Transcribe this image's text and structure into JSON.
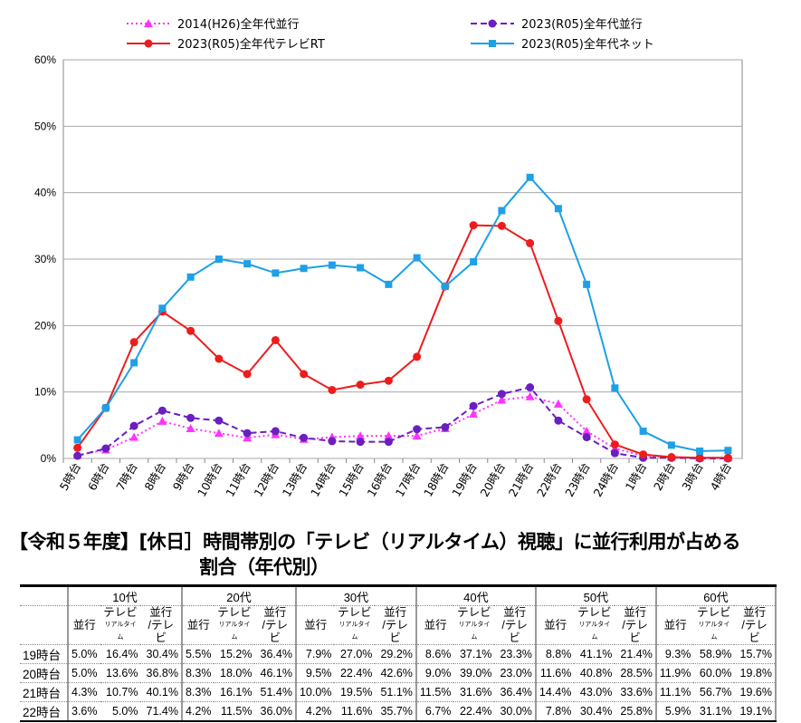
{
  "chart_data": {
    "type": "line",
    "title": "",
    "xlabel": "",
    "ylabel": "",
    "ylim": [
      0,
      60
    ],
    "yticks": [
      "0%",
      "10%",
      "20%",
      "30%",
      "40%",
      "50%",
      "60%"
    ],
    "categories": [
      "5時台",
      "6時台",
      "7時台",
      "8時台",
      "9時台",
      "10時台",
      "11時台",
      "12時台",
      "13時台",
      "14時台",
      "15時台",
      "16時台",
      "17時台",
      "18時台",
      "19時台",
      "20時台",
      "21時台",
      "22時台",
      "23時台",
      "24時台",
      "1時台",
      "2時台",
      "3時台",
      "4時台"
    ],
    "legend_position": "top",
    "series": [
      {
        "name": "2014(H26)全年代並行",
        "color": "#ff33ff",
        "style": "dotted",
        "marker": "triangle",
        "values": [
          0.5,
          1.3,
          3.2,
          5.6,
          4.5,
          3.8,
          3.1,
          3.6,
          2.9,
          3.2,
          3.4,
          3.4,
          3.4,
          4.5,
          6.7,
          8.8,
          9.3,
          8.2,
          4.1,
          1.5,
          0.4,
          0.2,
          0.1,
          0.1
        ]
      },
      {
        "name": "2023(R05)全年代並行",
        "color": "#6a1fc0",
        "style": "dashed",
        "marker": "circle",
        "values": [
          0.4,
          1.5,
          4.9,
          7.2,
          6.1,
          5.7,
          3.8,
          4.1,
          3.1,
          2.6,
          2.5,
          2.5,
          4.4,
          4.7,
          7.9,
          9.7,
          10.7,
          5.7,
          3.2,
          0.8,
          0.1,
          0.1,
          0.0,
          0.0
        ]
      },
      {
        "name": "2023(R05)全年代テレビRT",
        "color": "#ee1c1c",
        "style": "solid",
        "marker": "circle",
        "values": [
          1.6,
          7.6,
          17.5,
          22.1,
          19.2,
          15.0,
          12.7,
          17.8,
          12.7,
          10.3,
          11.1,
          11.7,
          15.3,
          25.9,
          35.1,
          35.0,
          32.4,
          20.7,
          8.9,
          2.1,
          0.6,
          0.2,
          0.1,
          0.1
        ]
      },
      {
        "name": "2023(R05)全年代ネット",
        "color": "#1ea0e6",
        "style": "solid",
        "marker": "square",
        "values": [
          2.8,
          7.6,
          14.4,
          22.6,
          27.3,
          30.0,
          29.3,
          27.9,
          28.6,
          29.1,
          28.7,
          26.2,
          30.2,
          25.9,
          29.6,
          37.3,
          42.3,
          37.6,
          26.2,
          10.6,
          4.1,
          2.0,
          1.1,
          1.2
        ]
      }
    ]
  },
  "table": {
    "title1": "【令和５年度】[休日］時間帯別の「テレビ（リアルタイム）視聴」に並行利用が占める",
    "title2": "割合（年代別）",
    "groups": [
      "10代",
      "20代",
      "30代",
      "40代",
      "50代",
      "60代"
    ],
    "sub": {
      "a": "並行",
      "b": "テレビ",
      "b2": "リアルタイム",
      "c1": "並行",
      "c2": "/テレビ"
    },
    "rows": [
      {
        "label": "19時台",
        "vals": [
          "5.0%",
          "16.4%",
          "30.4%",
          "5.5%",
          "15.2%",
          "36.4%",
          "7.9%",
          "27.0%",
          "29.2%",
          "8.6%",
          "37.1%",
          "23.3%",
          "8.8%",
          "41.1%",
          "21.4%",
          "9.3%",
          "58.9%",
          "15.7%"
        ]
      },
      {
        "label": "20時台",
        "vals": [
          "5.0%",
          "13.6%",
          "36.8%",
          "8.3%",
          "18.0%",
          "46.1%",
          "9.5%",
          "22.4%",
          "42.6%",
          "9.0%",
          "39.0%",
          "23.0%",
          "11.6%",
          "40.8%",
          "28.5%",
          "11.9%",
          "60.0%",
          "19.8%"
        ]
      },
      {
        "label": "21時台",
        "vals": [
          "4.3%",
          "10.7%",
          "40.1%",
          "8.3%",
          "16.1%",
          "51.4%",
          "10.0%",
          "19.5%",
          "51.1%",
          "11.5%",
          "31.6%",
          "36.4%",
          "14.4%",
          "43.0%",
          "33.6%",
          "11.1%",
          "56.7%",
          "19.6%"
        ]
      },
      {
        "label": "22時台",
        "vals": [
          "3.6%",
          "5.0%",
          "71.4%",
          "4.2%",
          "11.5%",
          "36.0%",
          "4.2%",
          "11.6%",
          "35.7%",
          "6.7%",
          "22.4%",
          "30.0%",
          "7.8%",
          "30.4%",
          "25.8%",
          "5.9%",
          "31.1%",
          "19.1%"
        ]
      }
    ]
  }
}
